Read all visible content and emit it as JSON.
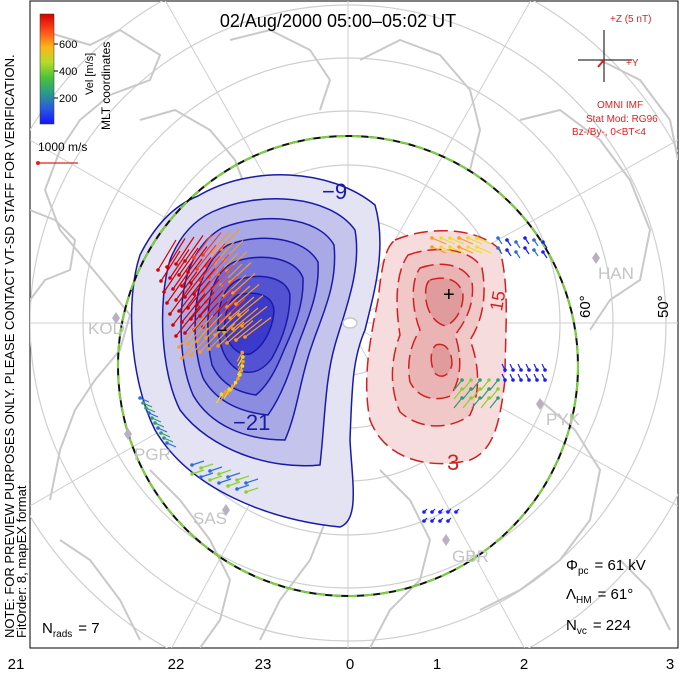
{
  "title": "02/Aug/2000 05:00–05:02 UT",
  "side_note": "NOTE: FOR PREVIEW PURPOSES ONLY. PLEASE CONTACT VT-SD STAFF FOR VERIFICATION.",
  "fit_order": "FitOrder: 8, mapEX format",
  "colorbar": {
    "label": "Vel [m/s]",
    "coords": "MLT coordinates",
    "ticks": [
      "600",
      "400",
      "200"
    ],
    "colors": [
      "#1a1aff",
      "#2a6fd6",
      "#2aa06a",
      "#8ad22a",
      "#e8e020",
      "#ff9a1a",
      "#ff3a2a",
      "#d40000"
    ]
  },
  "scale_vector": "1000 m/s",
  "imf": {
    "plus_z": "+Z (5 nT)",
    "plus_y": "+Y",
    "omni": "OMNI IMF",
    "stat_mod": "Stat Mod: RG96",
    "cond": "Bz-/By-, 0<BT<4",
    "color": "#e02020"
  },
  "contour_labels": {
    "neg9": "−9",
    "neg21": "−21",
    "pos3": "3",
    "pos15": "15"
  },
  "extremes": {
    "min": "−",
    "max": "+"
  },
  "lat_labels": {
    "lat60": "60°",
    "lat50": "50°"
  },
  "stations": [
    "KOD",
    "PGR",
    "SAS",
    "HAN",
    "PYK",
    "GBR"
  ],
  "mlt_axis": [
    "21",
    "22",
    "23",
    "0",
    "1",
    "2",
    "3"
  ],
  "stats": {
    "phi_pc": "= 61 kV",
    "lambda_hm": "= 61°",
    "n_vc": "= 224",
    "n_rads": "= 7"
  },
  "stat_symbols": {
    "phi": "Φ",
    "phi_sub": "pc",
    "lambda": "Λ",
    "lambda_sub": "HM",
    "n": "N",
    "n_vc_sub": "vc",
    "n_rads_sub": "rads"
  },
  "colors": {
    "neg_cell": "#3333d0",
    "pos_cell": "#e03030",
    "boundary": "#7ad23a"
  }
}
